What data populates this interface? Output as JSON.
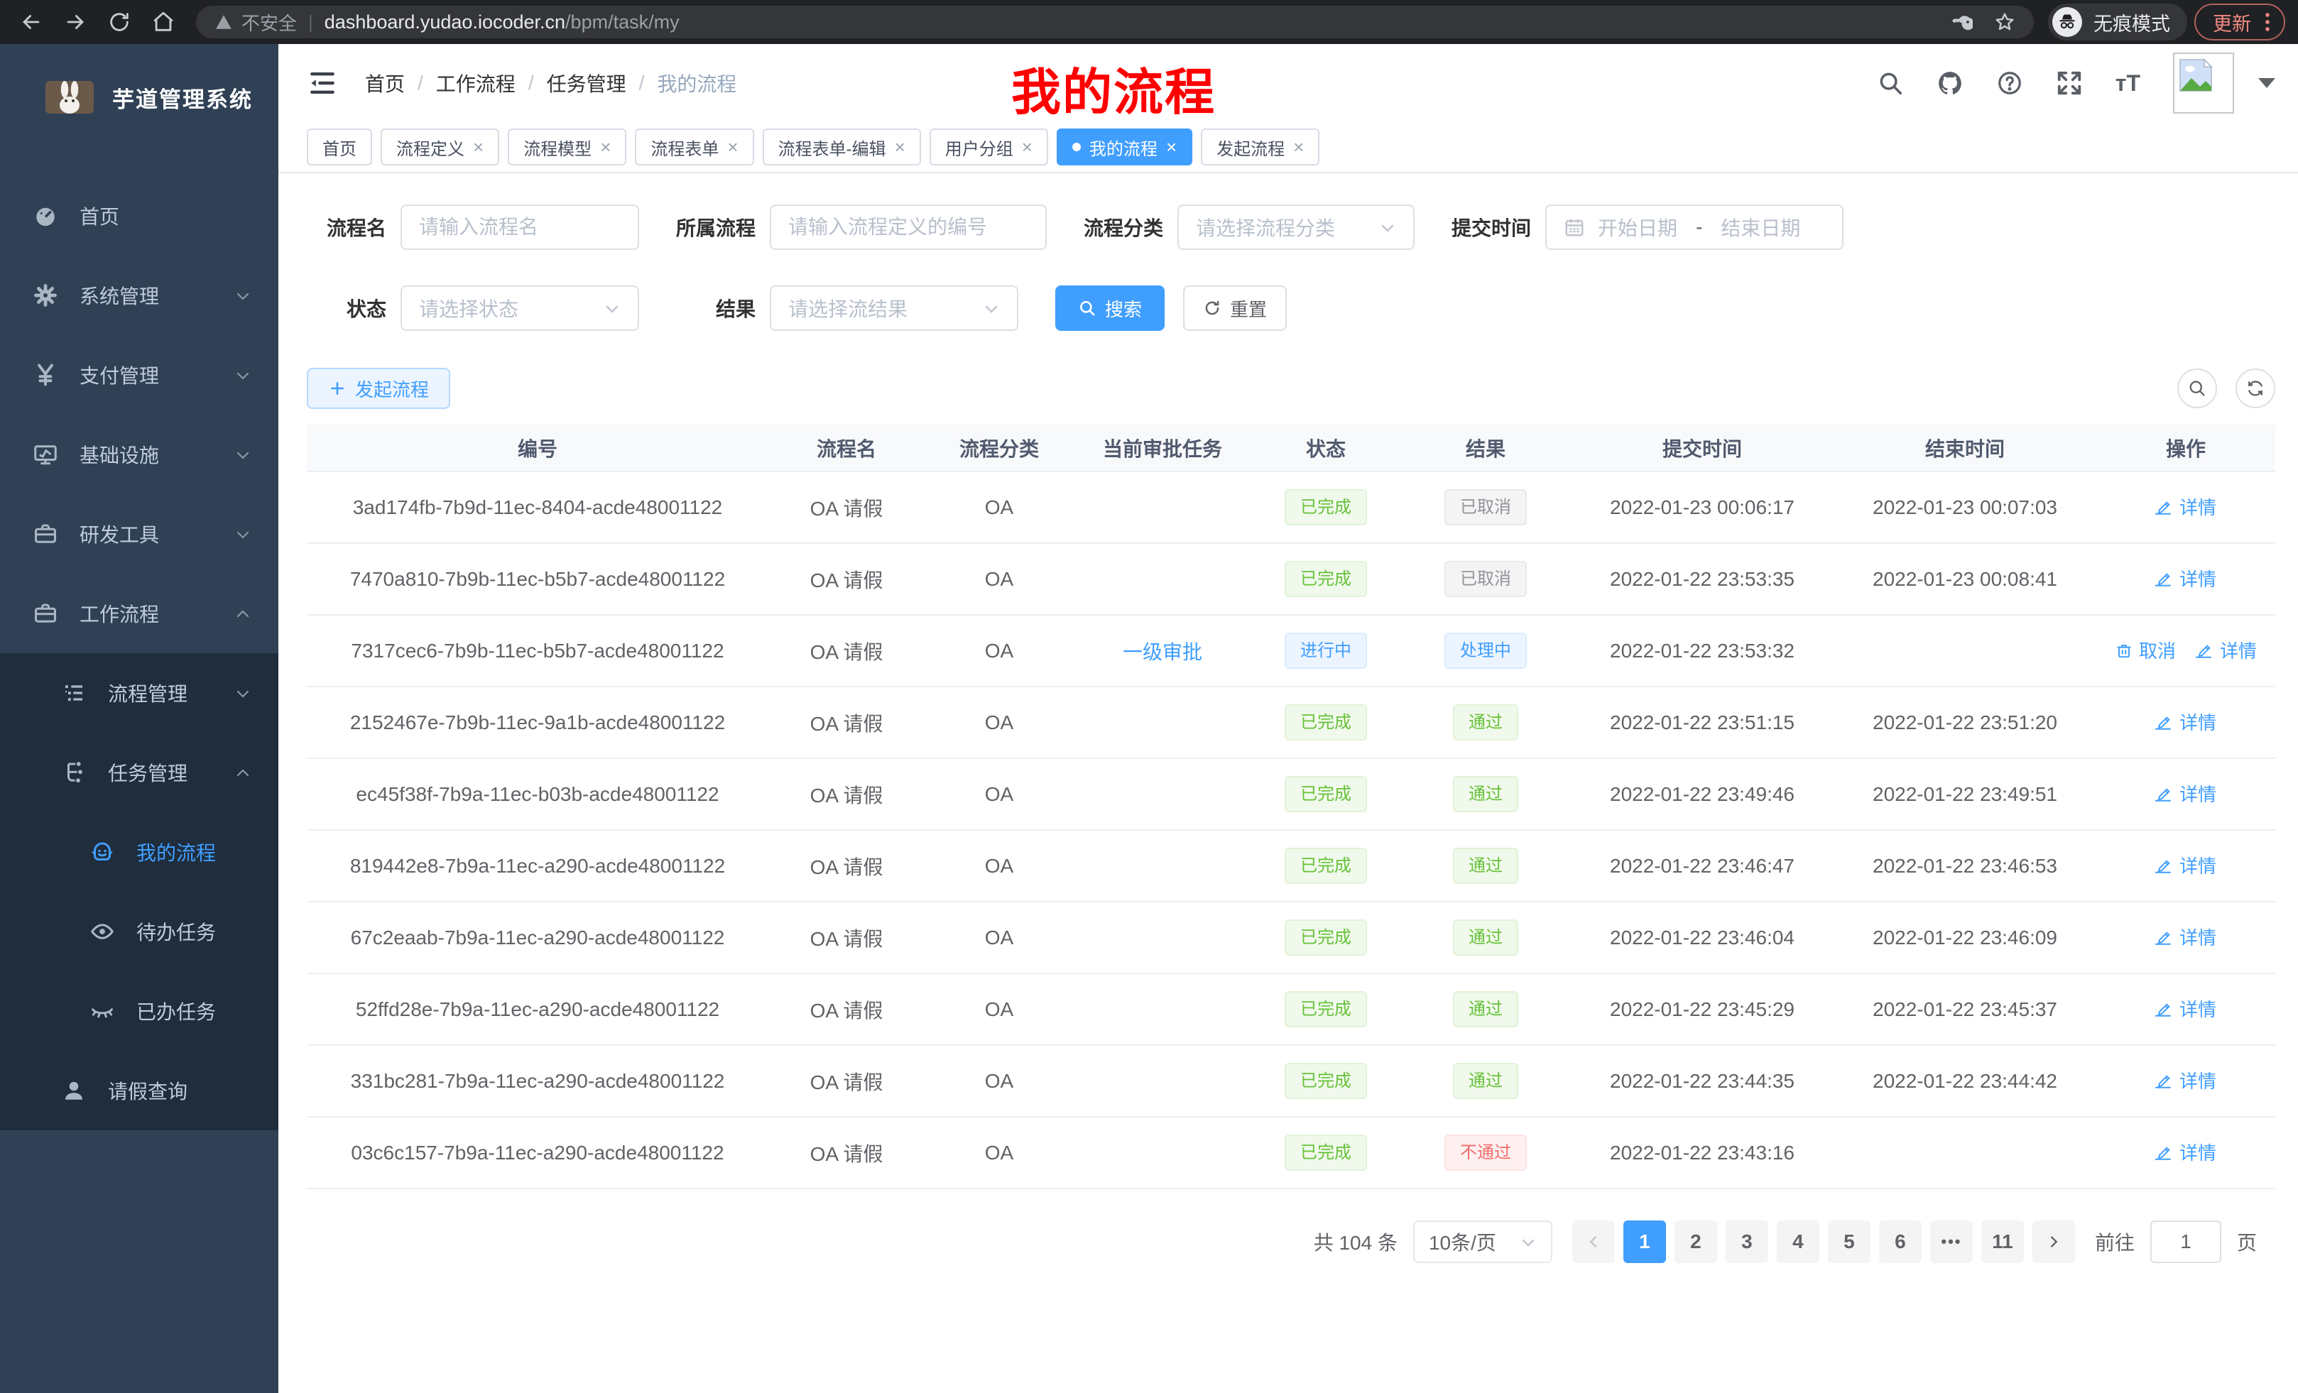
{
  "browser": {
    "security_label": "不安全",
    "url_host": "dashboard.yudao.iocoder.cn",
    "url_path": "/bpm/task/my",
    "incognito_label": "无痕模式",
    "update_label": "更新"
  },
  "sidebar": {
    "app_title": "芋道管理系统",
    "items": [
      {
        "key": "home",
        "label": "首页",
        "icon": "dashboard",
        "depth": 1,
        "arrow": "",
        "active": false
      },
      {
        "key": "system",
        "label": "系统管理",
        "icon": "gear",
        "depth": 1,
        "arrow": "down",
        "active": false
      },
      {
        "key": "payment",
        "label": "支付管理",
        "icon": "yen",
        "depth": 1,
        "arrow": "down",
        "active": false
      },
      {
        "key": "infra",
        "label": "基础设施",
        "icon": "monitor",
        "depth": 1,
        "arrow": "down",
        "active": false
      },
      {
        "key": "devtools",
        "label": "研发工具",
        "icon": "toolbox",
        "depth": 1,
        "arrow": "down",
        "active": false
      },
      {
        "key": "workflow",
        "label": "工作流程",
        "icon": "toolbox",
        "depth": 1,
        "arrow": "up",
        "active": false
      },
      {
        "key": "process-mgmt",
        "label": "流程管理",
        "icon": "tree",
        "depth": 2,
        "arrow": "down",
        "active": false
      },
      {
        "key": "task-mgmt",
        "label": "任务管理",
        "icon": "flow",
        "depth": 2,
        "arrow": "up",
        "active": false
      },
      {
        "key": "my-process",
        "label": "我的流程",
        "icon": "robot",
        "depth": 3,
        "arrow": "",
        "active": true
      },
      {
        "key": "todo-tasks",
        "label": "待办任务",
        "icon": "eye",
        "depth": 3,
        "arrow": "",
        "active": false
      },
      {
        "key": "done-tasks",
        "label": "已办任务",
        "icon": "eye-closed",
        "depth": 3,
        "arrow": "",
        "active": false
      },
      {
        "key": "leave-query",
        "label": "请假查询",
        "icon": "user",
        "depth": 2,
        "arrow": "",
        "active": false
      }
    ]
  },
  "header": {
    "breadcrumb": [
      "首页",
      "工作流程",
      "任务管理",
      "我的流程"
    ],
    "annotation": "我的流程"
  },
  "tabs": [
    {
      "key": "home",
      "label": "首页",
      "closable": false,
      "active": false
    },
    {
      "key": "process-definition",
      "label": "流程定义",
      "closable": true,
      "active": false
    },
    {
      "key": "process-model",
      "label": "流程模型",
      "closable": true,
      "active": false
    },
    {
      "key": "process-form",
      "label": "流程表单",
      "closable": true,
      "active": false
    },
    {
      "key": "process-form-edit",
      "label": "流程表单-编辑",
      "closable": true,
      "active": false
    },
    {
      "key": "user-group",
      "label": "用户分组",
      "closable": true,
      "active": false
    },
    {
      "key": "my-process",
      "label": "我的流程",
      "closable": true,
      "active": true
    },
    {
      "key": "start-process",
      "label": "发起流程",
      "closable": true,
      "active": false
    }
  ],
  "filters": {
    "name": {
      "label": "流程名",
      "placeholder": "请输入流程名"
    },
    "process": {
      "label": "所属流程",
      "placeholder": "请输入流程定义的编号"
    },
    "category": {
      "label": "流程分类",
      "placeholder": "请选择流程分类"
    },
    "submit_time": {
      "label": "提交时间",
      "start_placeholder": "开始日期",
      "separator": "-",
      "end_placeholder": "结束日期"
    },
    "status": {
      "label": "状态",
      "placeholder": "请选择状态"
    },
    "result": {
      "label": "结果",
      "placeholder": "请选择流结果"
    },
    "search_label": "搜索",
    "reset_label": "重置"
  },
  "toolbar": {
    "create_label": "发起流程"
  },
  "table": {
    "columns": [
      "编号",
      "流程名",
      "流程分类",
      "当前审批任务",
      "状态",
      "结果",
      "提交时间",
      "结束时间",
      "操作"
    ],
    "rows": [
      {
        "id": "3ad174fb-7b9d-11ec-8404-acde48001122",
        "name": "OA 请假",
        "category": "OA",
        "task": "",
        "status": {
          "text": "已完成",
          "type": "success"
        },
        "result": {
          "text": "已取消",
          "type": "info"
        },
        "submit_time": "2022-01-23 00:06:17",
        "end_time": "2022-01-23 00:07:03",
        "actions": [
          {
            "label": "详情",
            "icon": "edit"
          }
        ]
      },
      {
        "id": "7470a810-7b9b-11ec-b5b7-acde48001122",
        "name": "OA 请假",
        "category": "OA",
        "task": "",
        "status": {
          "text": "已完成",
          "type": "success"
        },
        "result": {
          "text": "已取消",
          "type": "info"
        },
        "submit_time": "2022-01-22 23:53:35",
        "end_time": "2022-01-23 00:08:41",
        "actions": [
          {
            "label": "详情",
            "icon": "edit"
          }
        ]
      },
      {
        "id": "7317cec6-7b9b-11ec-b5b7-acde48001122",
        "name": "OA 请假",
        "category": "OA",
        "task": "一级审批",
        "status": {
          "text": "进行中",
          "type": "primary"
        },
        "result": {
          "text": "处理中",
          "type": "primary"
        },
        "submit_time": "2022-01-22 23:53:32",
        "end_time": "",
        "actions": [
          {
            "label": "取消",
            "icon": "delete"
          },
          {
            "label": "详情",
            "icon": "edit"
          }
        ]
      },
      {
        "id": "2152467e-7b9b-11ec-9a1b-acde48001122",
        "name": "OA 请假",
        "category": "OA",
        "task": "",
        "status": {
          "text": "已完成",
          "type": "success"
        },
        "result": {
          "text": "通过",
          "type": "success"
        },
        "submit_time": "2022-01-22 23:51:15",
        "end_time": "2022-01-22 23:51:20",
        "actions": [
          {
            "label": "详情",
            "icon": "edit"
          }
        ]
      },
      {
        "id": "ec45f38f-7b9a-11ec-b03b-acde48001122",
        "name": "OA 请假",
        "category": "OA",
        "task": "",
        "status": {
          "text": "已完成",
          "type": "success"
        },
        "result": {
          "text": "通过",
          "type": "success"
        },
        "submit_time": "2022-01-22 23:49:46",
        "end_time": "2022-01-22 23:49:51",
        "actions": [
          {
            "label": "详情",
            "icon": "edit"
          }
        ]
      },
      {
        "id": "819442e8-7b9a-11ec-a290-acde48001122",
        "name": "OA 请假",
        "category": "OA",
        "task": "",
        "status": {
          "text": "已完成",
          "type": "success"
        },
        "result": {
          "text": "通过",
          "type": "success"
        },
        "submit_time": "2022-01-22 23:46:47",
        "end_time": "2022-01-22 23:46:53",
        "actions": [
          {
            "label": "详情",
            "icon": "edit"
          }
        ]
      },
      {
        "id": "67c2eaab-7b9a-11ec-a290-acde48001122",
        "name": "OA 请假",
        "category": "OA",
        "task": "",
        "status": {
          "text": "已完成",
          "type": "success"
        },
        "result": {
          "text": "通过",
          "type": "success"
        },
        "submit_time": "2022-01-22 23:46:04",
        "end_time": "2022-01-22 23:46:09",
        "actions": [
          {
            "label": "详情",
            "icon": "edit"
          }
        ]
      },
      {
        "id": "52ffd28e-7b9a-11ec-a290-acde48001122",
        "name": "OA 请假",
        "category": "OA",
        "task": "",
        "status": {
          "text": "已完成",
          "type": "success"
        },
        "result": {
          "text": "通过",
          "type": "success"
        },
        "submit_time": "2022-01-22 23:45:29",
        "end_time": "2022-01-22 23:45:37",
        "actions": [
          {
            "label": "详情",
            "icon": "edit"
          }
        ]
      },
      {
        "id": "331bc281-7b9a-11ec-a290-acde48001122",
        "name": "OA 请假",
        "category": "OA",
        "task": "",
        "status": {
          "text": "已完成",
          "type": "success"
        },
        "result": {
          "text": "通过",
          "type": "success"
        },
        "submit_time": "2022-01-22 23:44:35",
        "end_time": "2022-01-22 23:44:42",
        "actions": [
          {
            "label": "详情",
            "icon": "edit"
          }
        ]
      },
      {
        "id": "03c6c157-7b9a-11ec-a290-acde48001122",
        "name": "OA 请假",
        "category": "OA",
        "task": "",
        "status": {
          "text": "已完成",
          "type": "success"
        },
        "result": {
          "text": "不通过",
          "type": "danger"
        },
        "submit_time": "2022-01-22 23:43:16",
        "end_time": "",
        "actions": [
          {
            "label": "详情",
            "icon": "edit"
          }
        ]
      }
    ]
  },
  "pagination": {
    "total_label": "共 104 条",
    "page_size_label": "10条/页",
    "pages": [
      "1",
      "2",
      "3",
      "4",
      "5",
      "6",
      "•••",
      "11"
    ],
    "active_page": "1",
    "goto_prefix": "前往",
    "goto_value": "1",
    "goto_suffix": "页"
  }
}
